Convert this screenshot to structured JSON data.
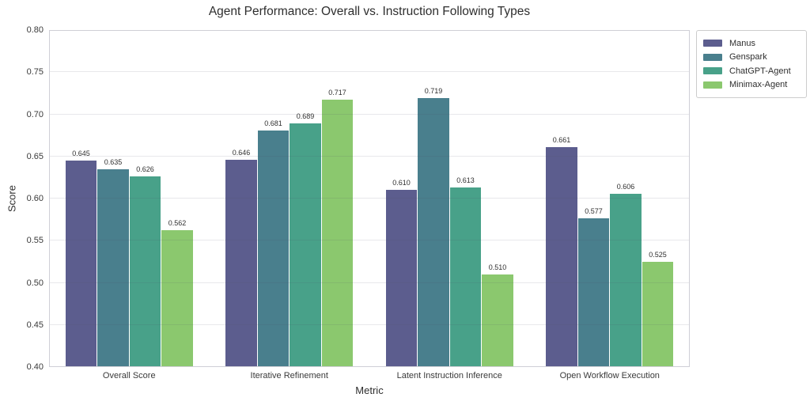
{
  "title": "Agent Performance: Overall vs. Instruction Following Types",
  "chart_data": {
    "type": "bar",
    "title": "Agent Performance: Overall vs. Instruction Following Types",
    "xlabel": "Metric",
    "ylabel": "Score",
    "ylim": [
      0.4,
      0.8
    ],
    "ytick_labels": [
      "0.40",
      "0.45",
      "0.50",
      "0.55",
      "0.60",
      "0.65",
      "0.70",
      "0.75",
      "0.80"
    ],
    "grid": true,
    "grid_axis": "y",
    "legend_position": "outside-right",
    "categories": [
      "Overall Score",
      "Iterative Refinement",
      "Latent Instruction Inference",
      "Open Workflow Execution"
    ],
    "series": [
      {
        "name": "Manus",
        "color": "#5C5D8E",
        "values": [
          0.645,
          0.646,
          0.61,
          0.661
        ]
      },
      {
        "name": "Genspark",
        "color": "#497F8D",
        "values": [
          0.635,
          0.681,
          0.719,
          0.577
        ]
      },
      {
        "name": "ChatGPT-Agent",
        "color": "#48A189",
        "values": [
          0.626,
          0.689,
          0.613,
          0.606
        ]
      },
      {
        "name": "Minimax-Agent",
        "color": "#8BC86E",
        "values": [
          0.562,
          0.717,
          0.51,
          0.525
        ]
      }
    ],
    "value_label_decimals": 3
  },
  "colors": {
    "background": "#ffffff",
    "grid": "rgba(80,80,100,0.13)",
    "spine": "#cfcfd6",
    "title_text": "#2e2e2e",
    "tick_text": "#3a3a3a",
    "legend_border": "#cccccc"
  }
}
